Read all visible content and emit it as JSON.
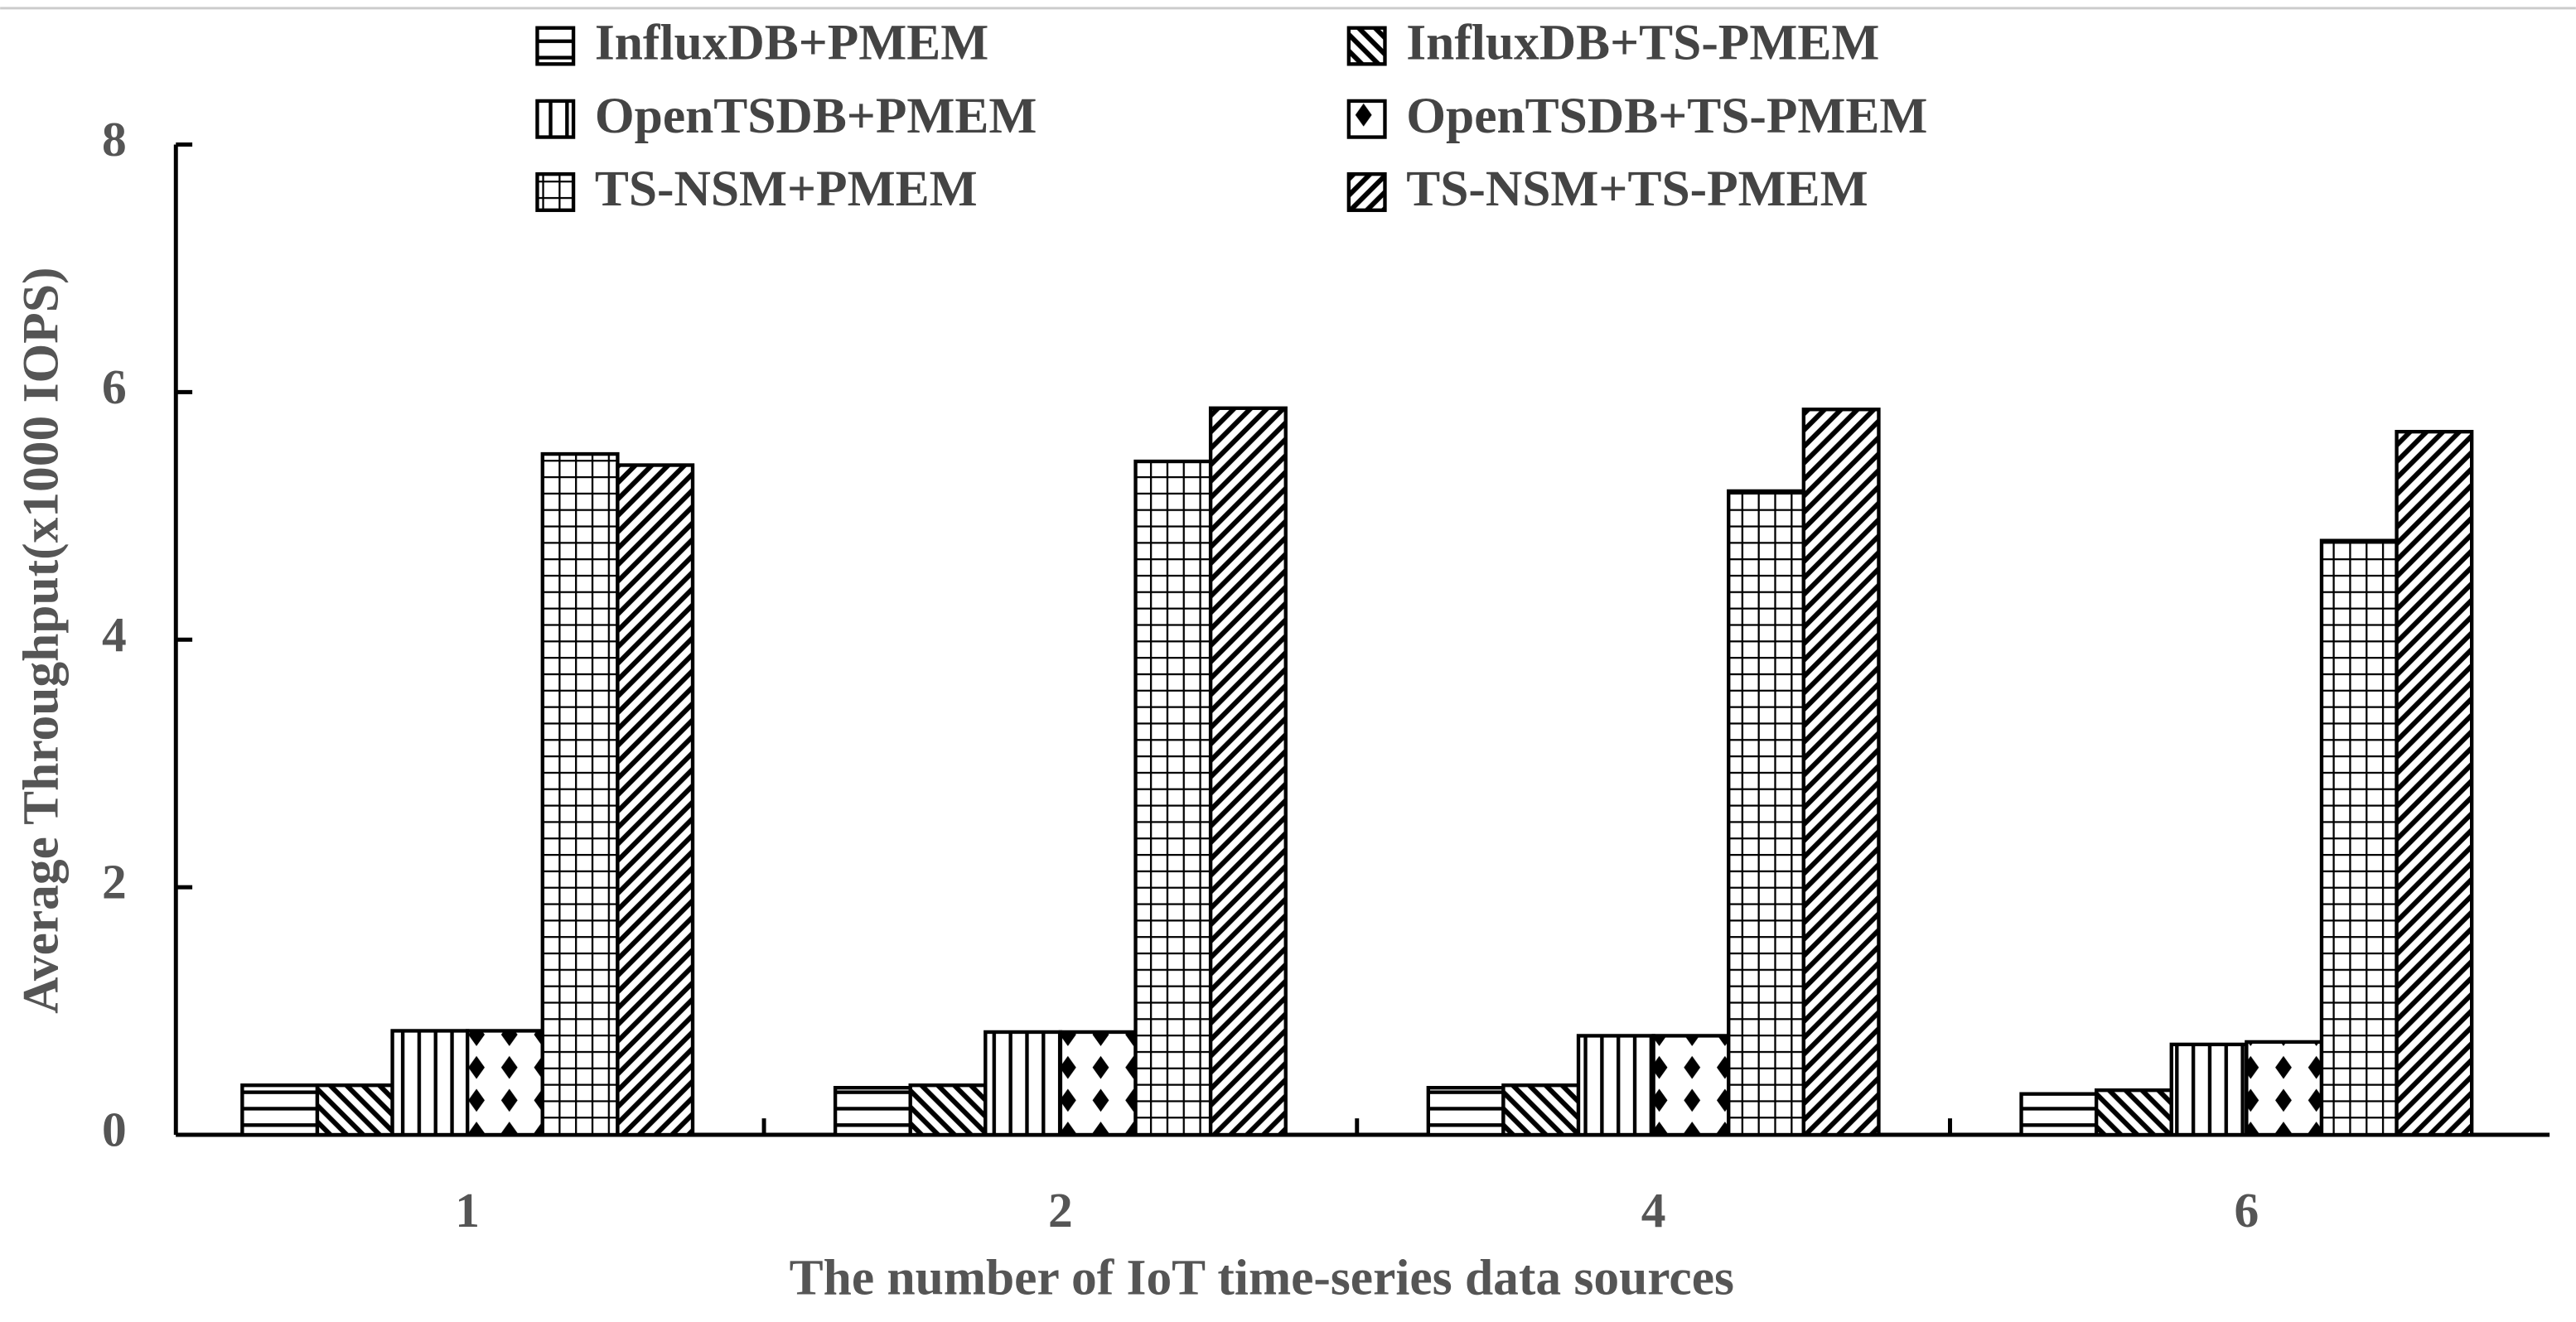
{
  "chart_data": {
    "type": "bar",
    "x_label": "The number of IoT time-series data sources",
    "y_label": "Average Throughput(x1000 IOPS)",
    "categories": [
      "1",
      "2",
      "4",
      "6"
    ],
    "series": [
      {
        "name": "InfluxDB+PMEM",
        "color": "#000000",
        "pattern": "horizontal",
        "values": [
          0.4,
          0.38,
          0.38,
          0.33
        ]
      },
      {
        "name": "InfluxDB+TS-PMEM",
        "color": "#000000",
        "pattern": "backslash",
        "values": [
          0.4,
          0.4,
          0.4,
          0.36
        ]
      },
      {
        "name": "OpenTSDB+PMEM",
        "color": "#000000",
        "pattern": "vertical",
        "values": [
          0.84,
          0.83,
          0.8,
          0.73
        ]
      },
      {
        "name": "OpenTSDB+TS-PMEM",
        "color": "#000000",
        "pattern": "diamond",
        "values": [
          0.84,
          0.83,
          0.8,
          0.75
        ]
      },
      {
        "name": "TS-NSM+PMEM",
        "color": "#000000",
        "pattern": "grid",
        "values": [
          5.5,
          5.44,
          5.2,
          4.8
        ]
      },
      {
        "name": "TS-NSM+TS-PMEM",
        "color": "#000000",
        "pattern": "slash",
        "values": [
          5.41,
          5.87,
          5.86,
          5.68
        ]
      }
    ],
    "ylim": [
      0,
      8
    ],
    "yticks": [
      0,
      2,
      4,
      6,
      8
    ],
    "grid": false
  }
}
